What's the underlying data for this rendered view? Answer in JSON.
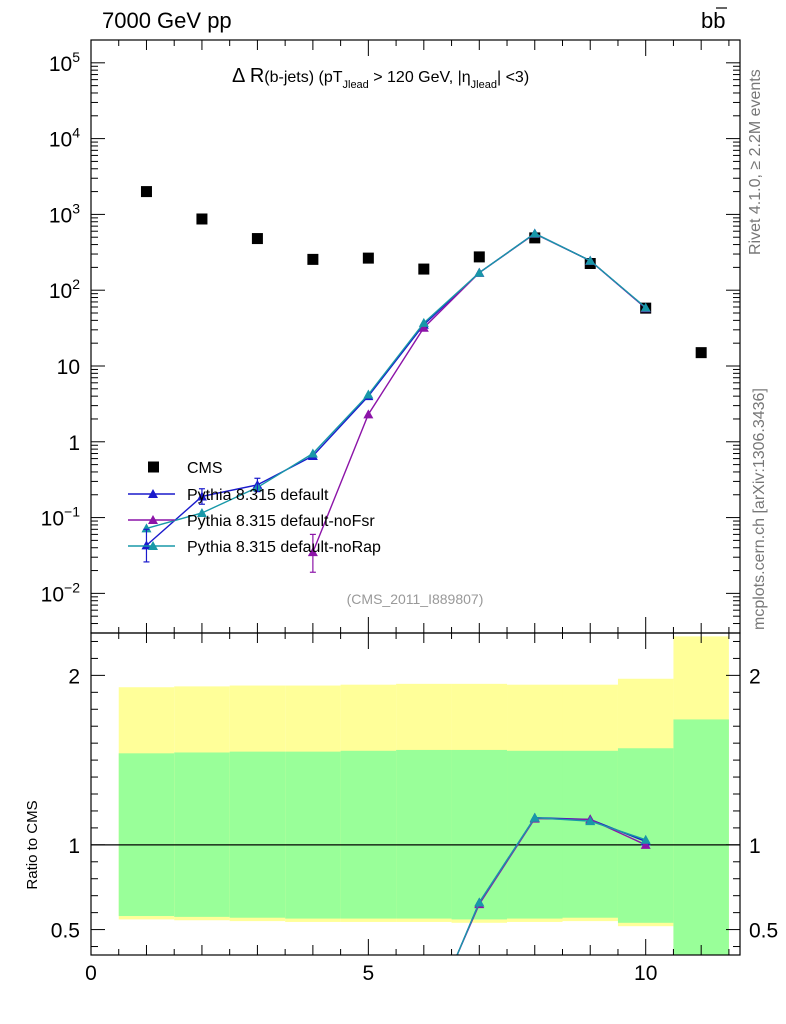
{
  "header": {
    "left": "7000 GeV pp",
    "right": "b",
    "right_bar": "b"
  },
  "side_labels": {
    "rivet": "Rivet 4.1.0, ≥ 2.2M events",
    "mcplots": "mcplots.cern.ch [arXiv:1306.3436]"
  },
  "analysis_id": "(CMS_2011_I889807)",
  "colors": {
    "cms": "#000000",
    "default": "#1a1acc",
    "noFsr": "#8c14a8",
    "noRap": "#1898a8",
    "band_inner": "#99ff99",
    "band_outer": "#ffff99"
  },
  "chart_data": [
    {
      "type": "scatter",
      "title_main": "Δ R",
      "title_rest": "(b-jets) (pT",
      "title_sub1": "Jlead",
      "title_mid": " >  120 GeV, |η",
      "title_sub2": "Jlead",
      "title_end": "| <3)",
      "xlim": [
        0,
        11.7
      ],
      "ylim": [
        0.003,
        200000
      ],
      "yscale": "log",
      "ytick_labels": [
        {
          "base": "10",
          "exp": "5",
          "value": 100000
        },
        {
          "base": "10",
          "exp": "4",
          "value": 10000
        },
        {
          "base": "10",
          "exp": "3",
          "value": 1000
        },
        {
          "base": "10",
          "exp": "2",
          "value": 100
        },
        {
          "base": "10",
          "exp": "",
          "value": 10
        },
        {
          "base": "1",
          "exp": "",
          "value": 1
        },
        {
          "base": "10",
          "exp": "−1",
          "value": 0.1
        },
        {
          "base": "10",
          "exp": "−2",
          "value": 0.01
        }
      ],
      "legend_position": "bottom-left",
      "series": [
        {
          "name": "CMS",
          "key": "cms",
          "marker": "square",
          "x": [
            1,
            2,
            3,
            4,
            5,
            6,
            7,
            8,
            9,
            10,
            11
          ],
          "values": [
            2000,
            870,
            480,
            255,
            265,
            190,
            275,
            490,
            225,
            58,
            15
          ]
        },
        {
          "name": "Pythia 8.315 default",
          "key": "default",
          "marker": "triangle",
          "x": [
            1,
            2,
            3,
            4,
            5,
            6,
            7,
            8,
            9,
            10
          ],
          "values": [
            0.043,
            0.19,
            0.27,
            0.65,
            4.0,
            35,
            170,
            560,
            245,
            58
          ]
        },
        {
          "name": "Pythia 8.315 default-noFsr",
          "key": "noFsr",
          "marker": "triangle",
          "x": [
            4,
            5,
            6,
            7,
            8,
            9,
            10
          ],
          "values": [
            0.035,
            2.3,
            32,
            170,
            555,
            245,
            58
          ]
        },
        {
          "name": "Pythia 8.315 default-noRap",
          "key": "noRap",
          "marker": "triangle",
          "x": [
            1,
            2,
            3,
            4,
            5,
            6,
            7,
            8,
            9,
            10
          ],
          "values": [
            0.072,
            0.115,
            0.25,
            0.7,
            4.2,
            37,
            170,
            560,
            245,
            59
          ]
        }
      ]
    },
    {
      "type": "line",
      "ylabel": "Ratio to CMS",
      "xlim": [
        0,
        11.7
      ],
      "ylim": [
        0.35,
        2.25
      ],
      "xtick_labels": [
        "0",
        "5",
        "10"
      ],
      "xtick_values": [
        0,
        5,
        10
      ],
      "ytick_labels": [
        "2",
        "1",
        "0.5"
      ],
      "ytick_values": [
        2,
        1,
        0.5
      ],
      "reference_line": 1,
      "bands": {
        "bin_edges": [
          0.5,
          1.5,
          2.5,
          3.5,
          4.5,
          5.5,
          6.5,
          7.5,
          8.5,
          9.5,
          10.5,
          11.5
        ],
        "inner_low": [
          0.58,
          0.575,
          0.57,
          0.565,
          0.565,
          0.565,
          0.56,
          0.565,
          0.57,
          0.54,
          0.35
        ],
        "inner_high": [
          1.54,
          1.545,
          1.55,
          1.55,
          1.555,
          1.56,
          1.56,
          1.555,
          1.555,
          1.57,
          1.74
        ],
        "outer_low": [
          0.56,
          0.555,
          0.55,
          0.545,
          0.545,
          0.545,
          0.54,
          0.545,
          0.55,
          0.52,
          0.35
        ],
        "outer_high": [
          1.93,
          1.935,
          1.94,
          1.94,
          1.945,
          1.95,
          1.95,
          1.945,
          1.945,
          1.98,
          2.23
        ]
      },
      "series": [
        {
          "name": "Pythia 8.315 default",
          "key": "default",
          "x": [
            6.6,
            7,
            8,
            9,
            10
          ],
          "values": [
            0.35,
            0.66,
            1.16,
            1.15,
            1.02
          ]
        },
        {
          "name": "Pythia 8.315 default-noFsr",
          "key": "noFsr",
          "x": [
            6.6,
            7,
            8,
            9,
            10
          ],
          "values": [
            0.35,
            0.65,
            1.155,
            1.15,
            1.0
          ]
        },
        {
          "name": "Pythia 8.315 default-noRap",
          "key": "noRap",
          "x": [
            6.6,
            7,
            8,
            9,
            10
          ],
          "values": [
            0.35,
            0.66,
            1.16,
            1.14,
            1.03
          ]
        }
      ]
    }
  ]
}
